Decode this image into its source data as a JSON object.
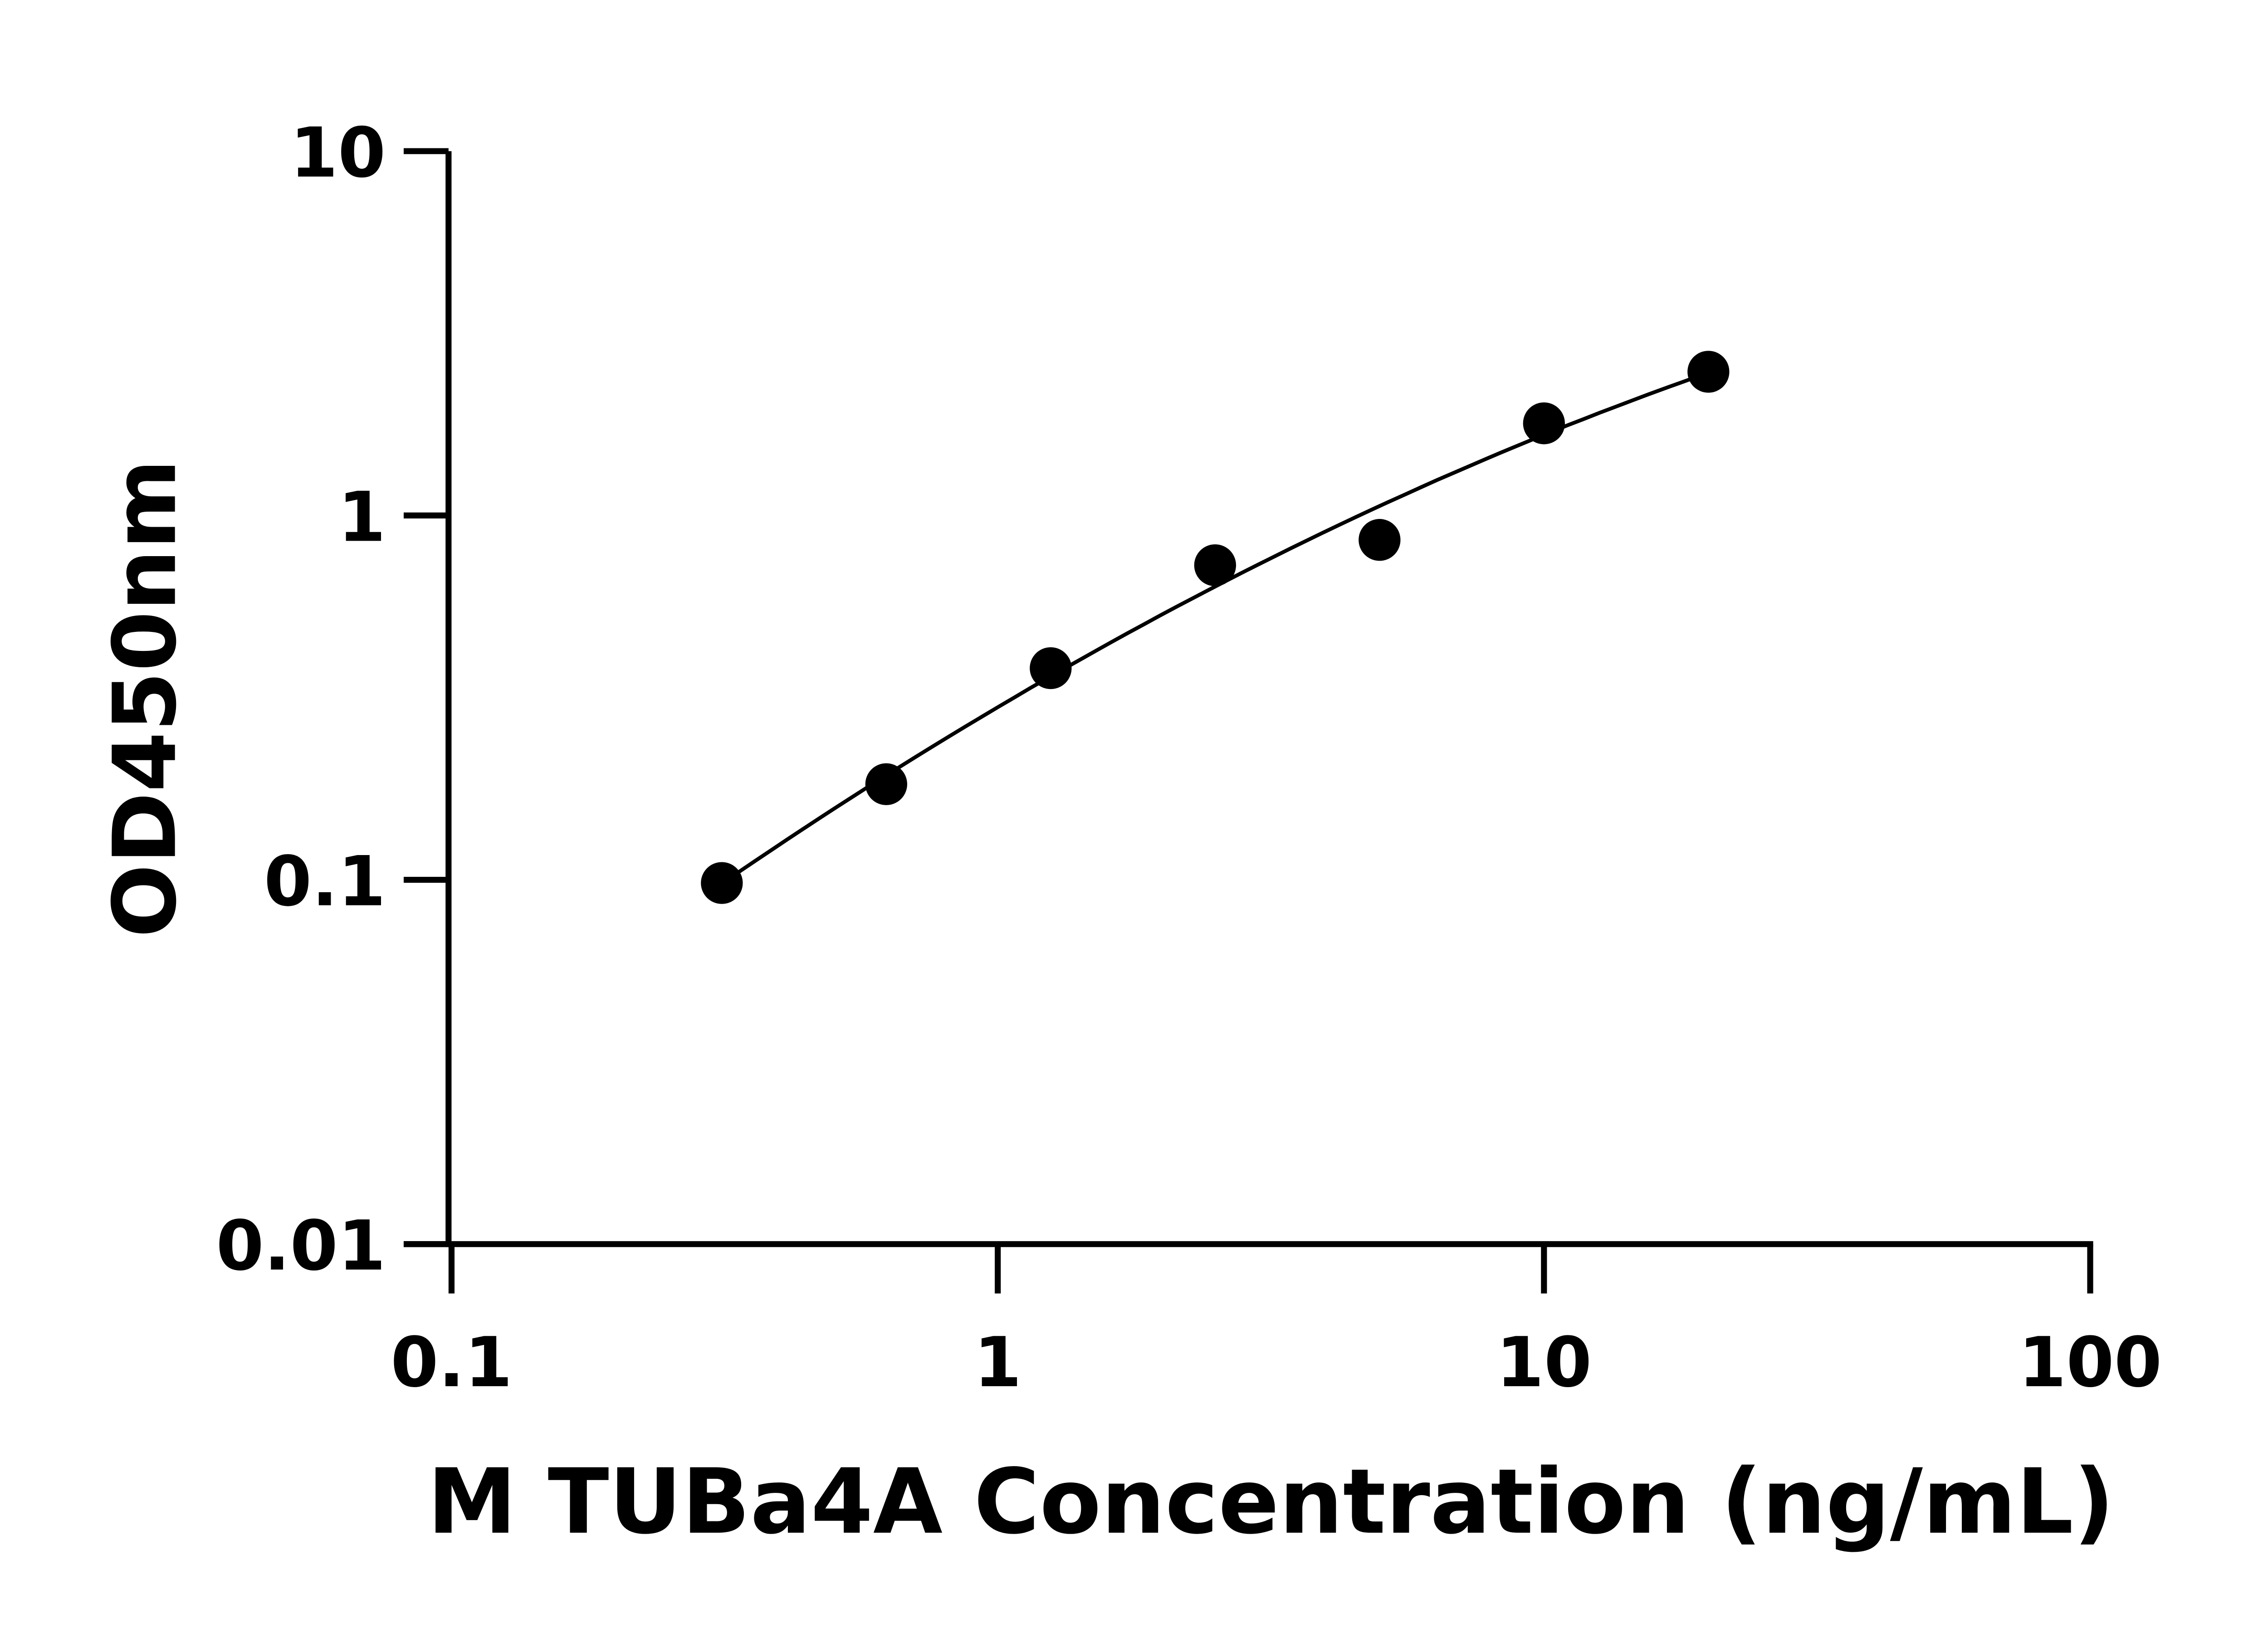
{
  "chart_data": {
    "type": "scatter",
    "title": "",
    "xlabel": "M TUBa4A Concentration (ng/mL)",
    "ylabel": "OD450nm",
    "xscale": "log",
    "yscale": "log",
    "xlim": [
      0.1,
      100
    ],
    "ylim": [
      0.01,
      10
    ],
    "xticks": [
      "0.1",
      "1",
      "10",
      "100"
    ],
    "yticks": [
      "0.01",
      "0.1",
      "1",
      "10"
    ],
    "grid": false,
    "legend": "none",
    "series": [
      {
        "x": [
          0.3125,
          0.625,
          1.25,
          2.5,
          5,
          10,
          20
        ],
        "y": [
          0.098,
          0.183,
          0.381,
          0.73,
          0.857,
          1.79,
          2.48
        ],
        "marker": "filled-circle",
        "color": "#000000",
        "fit_line": true
      }
    ]
  }
}
